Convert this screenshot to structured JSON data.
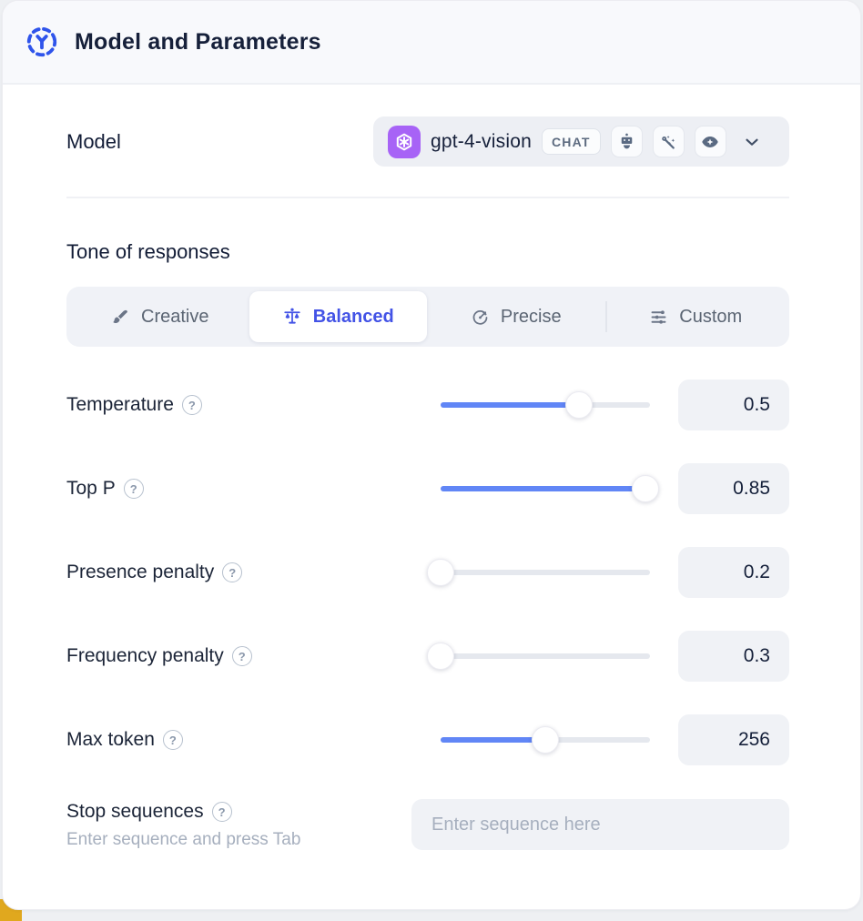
{
  "header": {
    "title": "Model and Parameters"
  },
  "model_row": {
    "label": "Model",
    "selected_model": "gpt-4-vision",
    "mode_badge": "CHAT",
    "capability_icons": [
      "robot-icon",
      "magic-wand-icon",
      "vision-icon"
    ]
  },
  "tone": {
    "heading": "Tone of responses",
    "options": [
      {
        "label": "Creative",
        "icon": "paintbrush-icon",
        "selected": false
      },
      {
        "label": "Balanced",
        "icon": "balance-scale-icon",
        "selected": true
      },
      {
        "label": "Precise",
        "icon": "target-icon",
        "selected": false
      },
      {
        "label": "Custom",
        "icon": "sliders-icon",
        "selected": false
      }
    ]
  },
  "parameters": [
    {
      "label": "Temperature",
      "value": "0.5",
      "fill_percent": 66
    },
    {
      "label": "Top P",
      "value": "0.85",
      "fill_percent": 98
    },
    {
      "label": "Presence penalty",
      "value": "0.2",
      "fill_percent": 0
    },
    {
      "label": "Frequency penalty",
      "value": "0.3",
      "fill_percent": 0
    },
    {
      "label": "Max token",
      "value": "256",
      "fill_percent": 50
    }
  ],
  "stop_sequences": {
    "label": "Stop sequences",
    "hint": "Enter sequence and press Tab",
    "placeholder": "Enter sequence here"
  },
  "help_glyph": "?",
  "colors": {
    "accent_blue": "#4353e6",
    "slider_blue": "#6186f6",
    "provider_purple": "#a763f6",
    "header_icon_blue": "#2f54eb",
    "corner_accent_yellow": "#e0a81e"
  }
}
